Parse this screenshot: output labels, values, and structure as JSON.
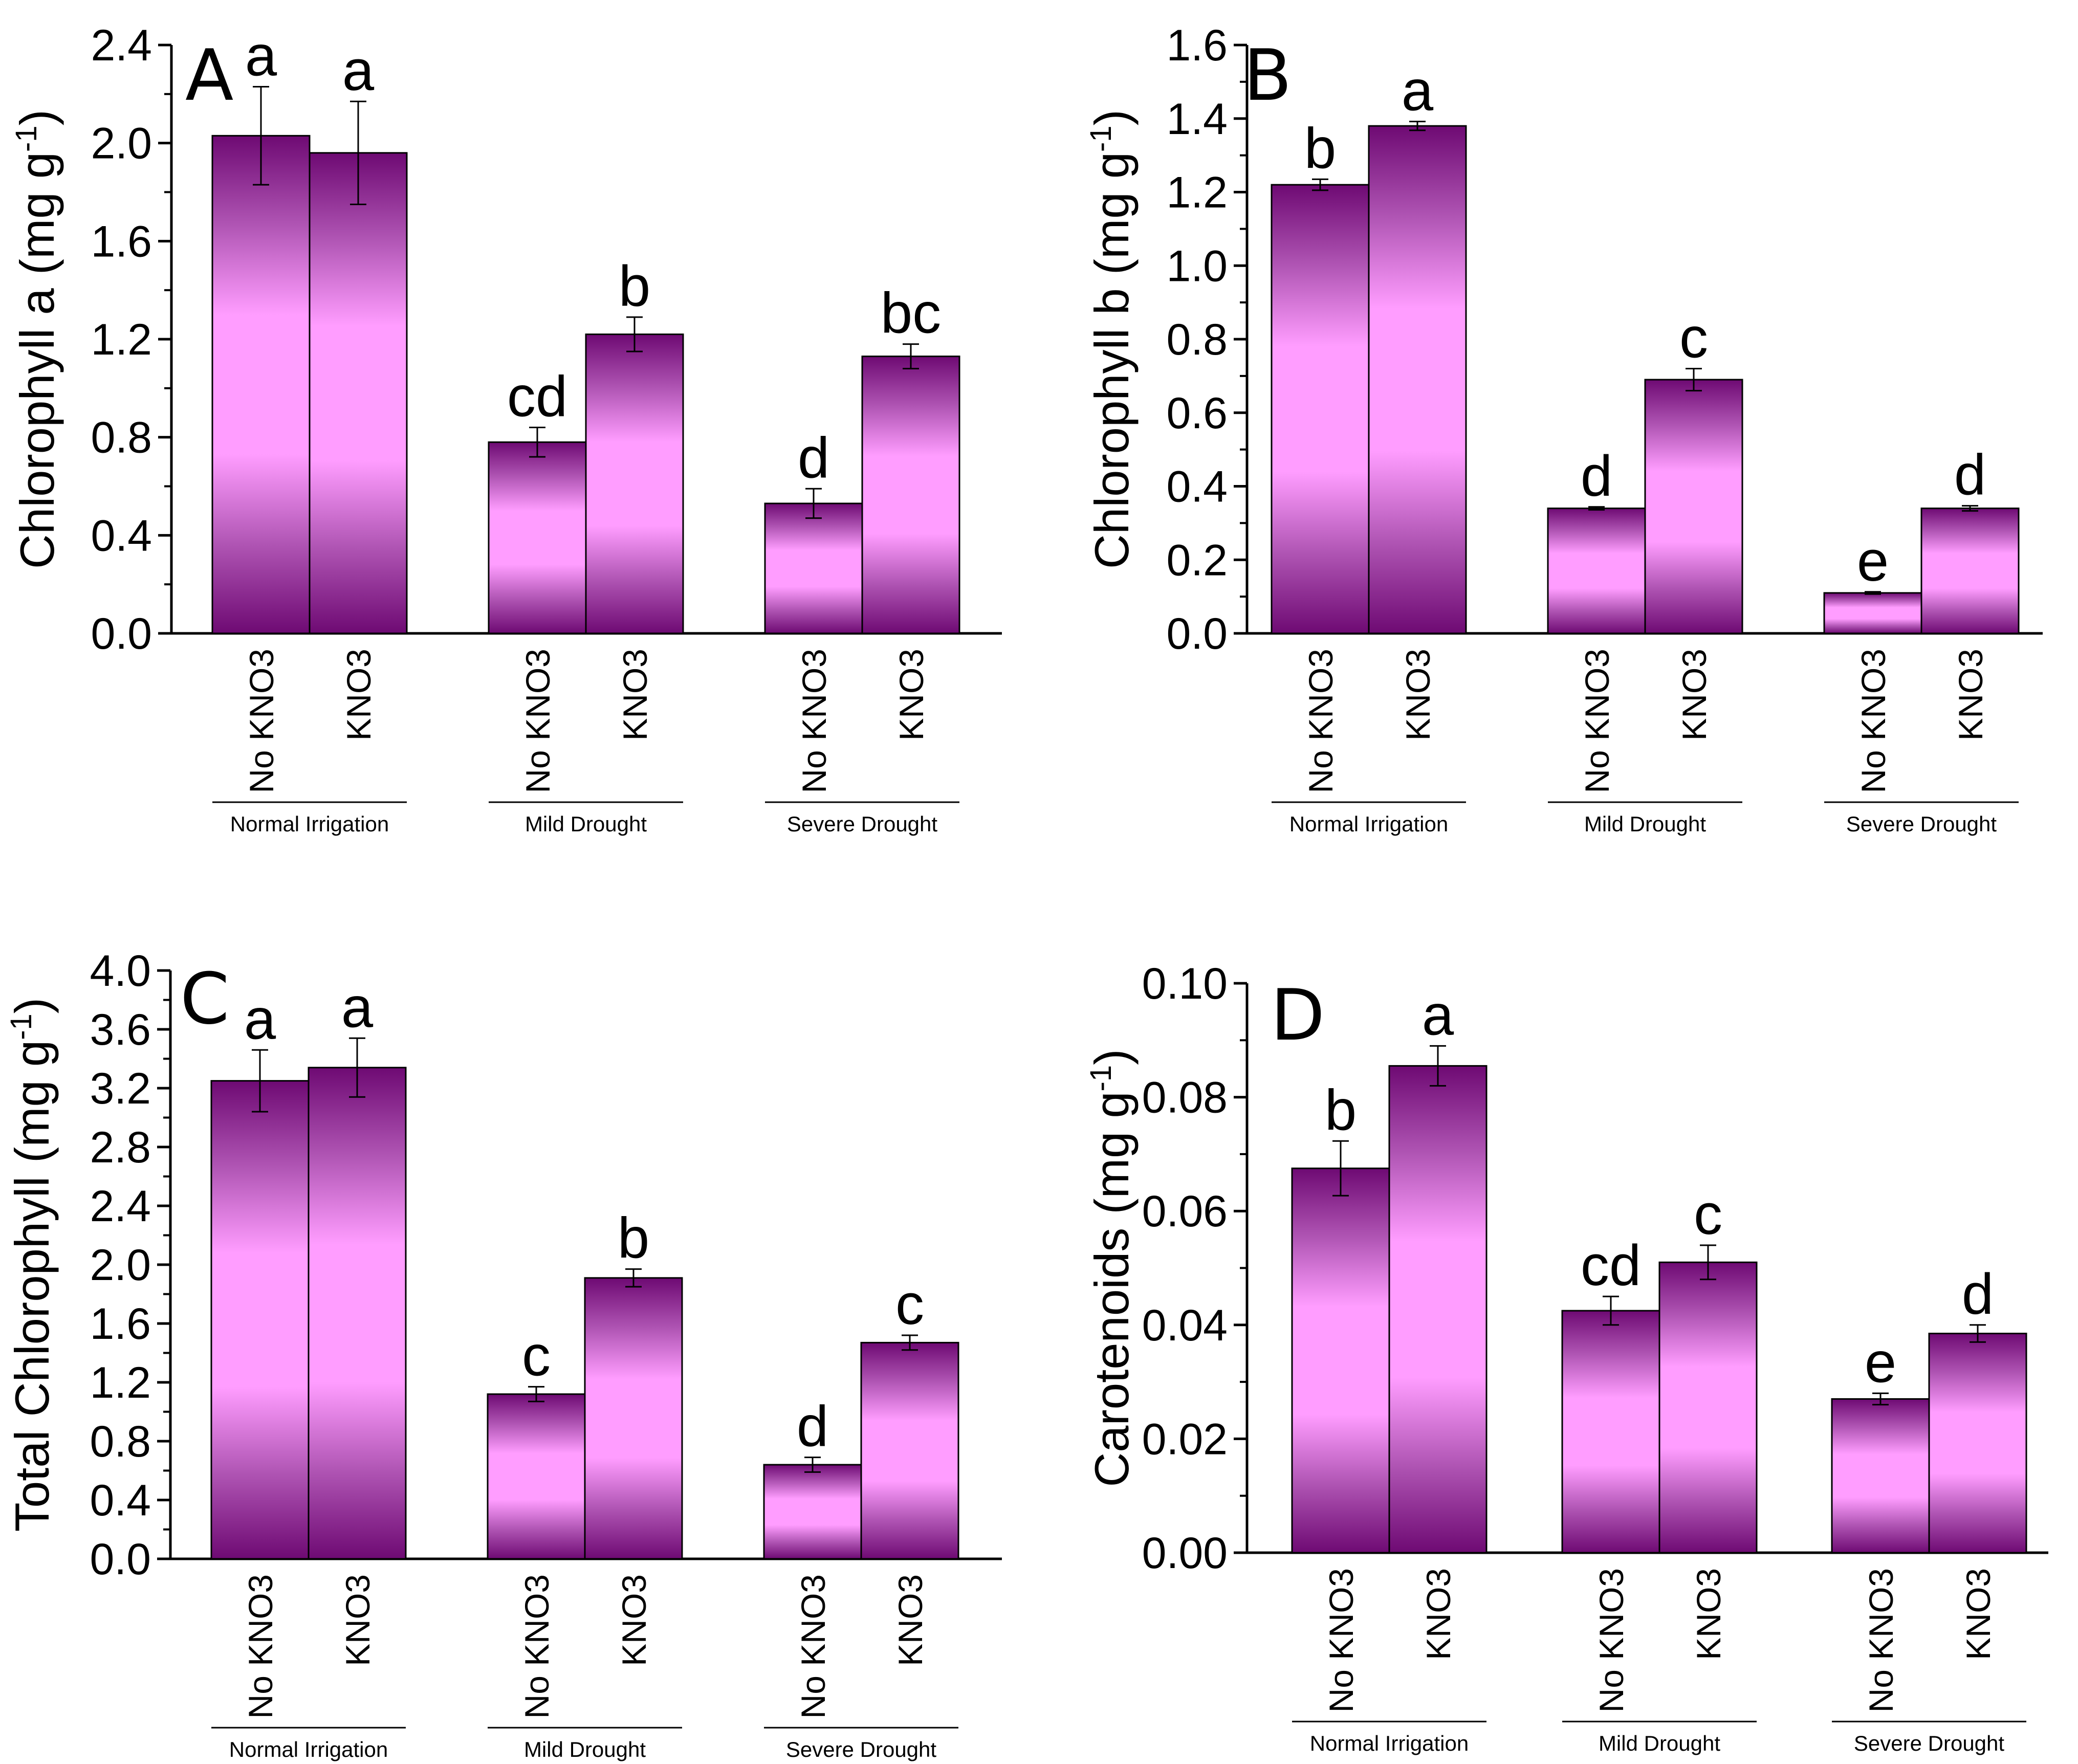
{
  "colors": {
    "bar_dark": "#6e0a73",
    "bar_light": "#ff9dff",
    "axis": "#000000"
  },
  "chart_data": [
    {
      "type": "bar",
      "panel": "A",
      "ylabel_main": "Chlorophyll a (mg g",
      "ylabel_sup": "-1",
      "ylabel_end": ")",
      "ylim": [
        0,
        2.4
      ],
      "yticks": [
        "0.0",
        "0.4",
        "0.8",
        "1.2",
        "1.6",
        "2.0",
        "2.4"
      ],
      "groups": [
        "Normal Irrigation",
        "Mild Drought",
        "Severe Drought"
      ],
      "treatments": [
        "No KNO3",
        "KNO3"
      ],
      "values": [
        [
          2.03,
          1.96
        ],
        [
          0.78,
          1.22
        ],
        [
          0.53,
          1.13
        ]
      ],
      "errors": [
        [
          0.2,
          0.21
        ],
        [
          0.06,
          0.07
        ],
        [
          0.06,
          0.05
        ]
      ],
      "letters": [
        [
          "a",
          "a"
        ],
        [
          "cd",
          "b"
        ],
        [
          "d",
          "bc"
        ]
      ]
    },
    {
      "type": "bar",
      "panel": "B",
      "ylabel_main": "Chlorophyll b (mg g",
      "ylabel_sup": "-1",
      "ylabel_end": ")",
      "ylim": [
        0,
        1.6
      ],
      "yticks": [
        "0.0",
        "0.2",
        "0.4",
        "0.6",
        "0.8",
        "1.0",
        "1.2",
        "1.4",
        "1.6"
      ],
      "groups": [
        "Normal Irrigation",
        "Mild Drought",
        "Severe Drought"
      ],
      "treatments": [
        "No KNO3",
        "KNO3"
      ],
      "values": [
        [
          1.22,
          1.38
        ],
        [
          0.34,
          0.69
        ],
        [
          0.11,
          0.34
        ]
      ],
      "errors": [
        [
          0.015,
          0.012
        ],
        [
          0.004,
          0.03
        ],
        [
          0.003,
          0.007
        ]
      ],
      "letters": [
        [
          "b",
          "a"
        ],
        [
          "d",
          "c"
        ],
        [
          "e",
          "d"
        ]
      ]
    },
    {
      "type": "bar",
      "panel": "C",
      "ylabel_main": "Total Chlorophyll (mg g",
      "ylabel_sup": "-1",
      "ylabel_end": ")",
      "ylim": [
        0,
        4.0
      ],
      "yticks": [
        "0.0",
        "0.4",
        "0.8",
        "1.2",
        "1.6",
        "2.0",
        "2.4",
        "2.8",
        "3.2",
        "3.6",
        "4.0"
      ],
      "groups": [
        "Normal Irrigation",
        "Mild Drought",
        "Severe Drought"
      ],
      "treatments": [
        "No KNO3",
        "KNO3"
      ],
      "values": [
        [
          3.25,
          3.34
        ],
        [
          1.12,
          1.91
        ],
        [
          0.64,
          1.47
        ]
      ],
      "errors": [
        [
          0.21,
          0.2
        ],
        [
          0.05,
          0.06
        ],
        [
          0.05,
          0.05
        ]
      ],
      "letters": [
        [
          "a",
          "a"
        ],
        [
          "c",
          "b"
        ],
        [
          "d",
          "c"
        ]
      ]
    },
    {
      "type": "bar",
      "panel": "D",
      "ylabel_main": "Carotenoids (mg g",
      "ylabel_sup": "-1",
      "ylabel_end": ")",
      "ylim": [
        0,
        0.1
      ],
      "yticks": [
        "0.00",
        "0.02",
        "0.04",
        "0.06",
        "0.08",
        "0.10"
      ],
      "groups": [
        "Normal Irrigation",
        "Mild Drought",
        "Severe Drought"
      ],
      "treatments": [
        "No KNO3",
        "KNO3"
      ],
      "values": [
        [
          0.0675,
          0.0855
        ],
        [
          0.0425,
          0.051
        ],
        [
          0.027,
          0.0385
        ]
      ],
      "errors": [
        [
          0.0048,
          0.0035
        ],
        [
          0.0025,
          0.003
        ],
        [
          0.001,
          0.0015
        ]
      ],
      "letters": [
        [
          "b",
          "a"
        ],
        [
          "cd",
          "c"
        ],
        [
          "e",
          "d"
        ]
      ]
    }
  ]
}
